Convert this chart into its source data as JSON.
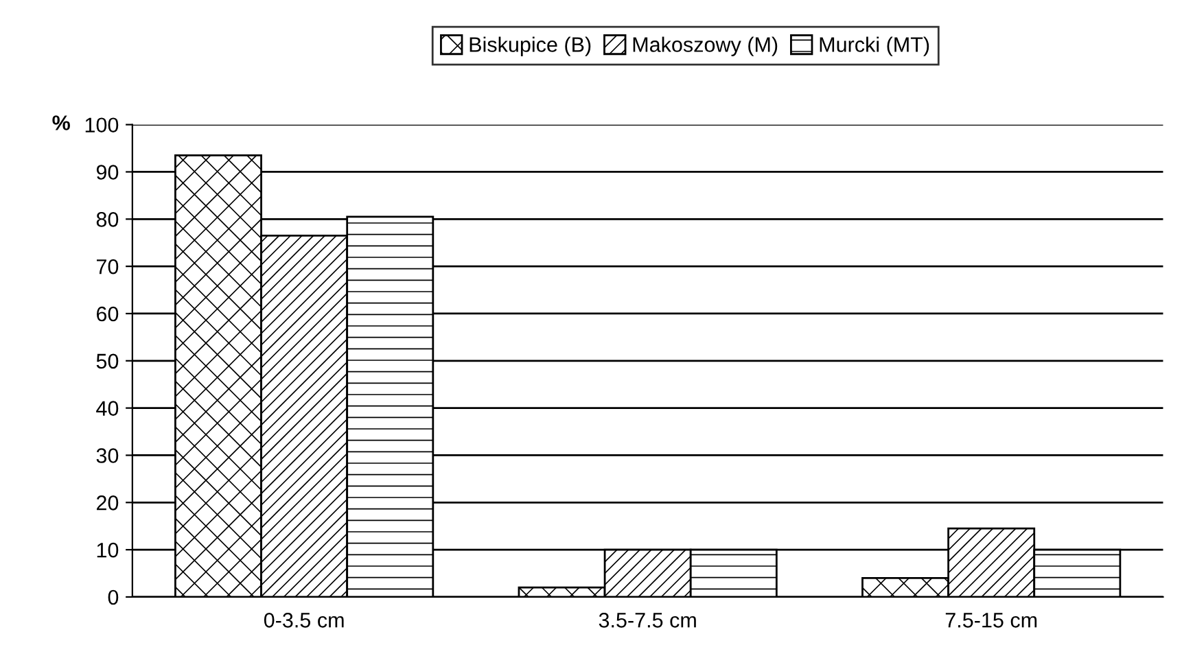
{
  "chart_data": {
    "type": "bar",
    "ylabel": "%",
    "categories": [
      "0-3.5 cm",
      "3.5-7.5 cm",
      "7.5-15 cm"
    ],
    "series": [
      {
        "name": "Biskupice (B)",
        "color": "#000000",
        "values": [
          93.5,
          2,
          4
        ]
      },
      {
        "name": "Makoszowy (M)",
        "color": "#000000",
        "values": [
          76.5,
          10,
          14.5
        ]
      },
      {
        "name": "Murcki (MT)",
        "color": "#000000",
        "values": [
          80.5,
          10,
          10
        ]
      }
    ],
    "ylim": [
      0,
      100
    ],
    "yticks": [
      0,
      10,
      20,
      30,
      40,
      50,
      60,
      70,
      80,
      90,
      100
    ],
    "grid": "y",
    "legend": "top"
  }
}
